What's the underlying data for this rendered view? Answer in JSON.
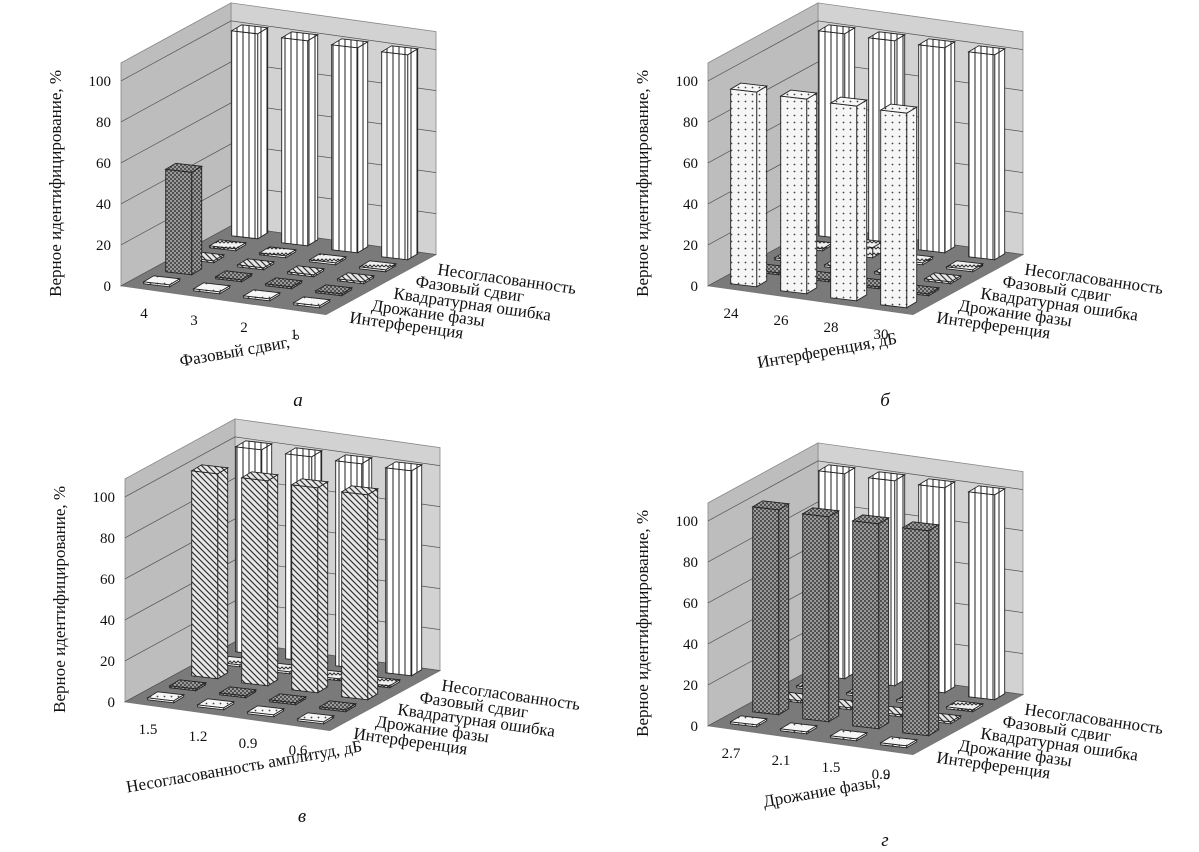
{
  "figure": {
    "depth_categories": [
      "Интерференция",
      "Дрожание фазы",
      "Квадратурная ошибка",
      "Фазовый сдвиг",
      "Несогласованность"
    ],
    "series_colors": {
      "Интерференция": "#f2f2f2",
      "Дрожание фазы": "#8a8a8a",
      "Квадратурная ошибка": "#cfcfcf",
      "Фазовый сдвиг": "#e6e6e6",
      "Несогласованность": "#ffffff"
    },
    "colors": {
      "floor": "#7a7a7a",
      "back_wall": "#d2d2d2",
      "side_wall": "#bdbdbd",
      "grid": "#555555"
    }
  },
  "chart_data": [
    {
      "type": "bar",
      "panel": "а",
      "title": "",
      "ylabel": "Верное идентифицирование, %",
      "xlabel": "Фазовый сдвиг, °",
      "categories": [
        "4",
        "3",
        "2",
        "1"
      ],
      "yticks": [
        "0",
        "20",
        "40",
        "60",
        "80",
        "100"
      ],
      "ylim": [
        0,
        100
      ],
      "grid": true,
      "series": [
        {
          "name": "Интерференция",
          "values": [
            0,
            0,
            0,
            0
          ]
        },
        {
          "name": "Дрожание фазы",
          "values": [
            50,
            0,
            0,
            0
          ]
        },
        {
          "name": "Квадратурная ошибка",
          "values": [
            0,
            0,
            0,
            0
          ]
        },
        {
          "name": "Фазовый сдвиг",
          "values": [
            0,
            0,
            0,
            0
          ]
        },
        {
          "name": "Несогласованность",
          "values": [
            100,
            100,
            100,
            100
          ]
        }
      ]
    },
    {
      "type": "bar",
      "panel": "б",
      "title": "",
      "ylabel": "Верное идентифицирование, %",
      "xlabel": "Интерференция, дБ",
      "categories": [
        "24",
        "26",
        "28",
        "30"
      ],
      "yticks": [
        "0",
        "20",
        "40",
        "60",
        "80",
        "100"
      ],
      "ylim": [
        0,
        100
      ],
      "grid": true,
      "series": [
        {
          "name": "Интерференция",
          "values": [
            95,
            95,
            95,
            95
          ]
        },
        {
          "name": "Дрожание фазы",
          "values": [
            0,
            0,
            0,
            0
          ]
        },
        {
          "name": "Квадратурная ошибка",
          "values": [
            0,
            0,
            0,
            0
          ]
        },
        {
          "name": "Фазовый сдвиг",
          "values": [
            0,
            5,
            0,
            0
          ]
        },
        {
          "name": "Несогласованность",
          "values": [
            100,
            100,
            100,
            100
          ]
        }
      ]
    },
    {
      "type": "bar",
      "panel": "в",
      "title": "",
      "ylabel": "Верное идентифицирование, %",
      "xlabel": "Несогласованность амплитуд, дБ",
      "categories": [
        "1.5",
        "1.2",
        "0.9",
        "0.6"
      ],
      "yticks": [
        "0",
        "20",
        "40",
        "60",
        "80",
        "100"
      ],
      "ylim": [
        0,
        100
      ],
      "grid": true,
      "series": [
        {
          "name": "Интерференция",
          "values": [
            0,
            0,
            0,
            0
          ]
        },
        {
          "name": "Дрожание фазы",
          "values": [
            0,
            0,
            0,
            0
          ]
        },
        {
          "name": "Квадратурная ошибка",
          "values": [
            100,
            100,
            100,
            100
          ]
        },
        {
          "name": "Фазовый сдвиг",
          "values": [
            0,
            0,
            0,
            0
          ]
        },
        {
          "name": "Несогласованность",
          "values": [
            100,
            100,
            100,
            100
          ]
        }
      ]
    },
    {
      "type": "bar",
      "panel": "г",
      "title": "",
      "ylabel": "Верное идентифицирование, %",
      "xlabel": "Дрожание фазы, °",
      "categories": [
        "2.7",
        "2.1",
        "1.5",
        "0.9"
      ],
      "yticks": [
        "0",
        "20",
        "40",
        "60",
        "80",
        "100"
      ],
      "ylim": [
        0,
        100
      ],
      "grid": true,
      "series": [
        {
          "name": "Интерференция",
          "values": [
            0,
            0,
            0,
            0
          ]
        },
        {
          "name": "Дрожание фазы",
          "values": [
            100,
            100,
            100,
            100
          ]
        },
        {
          "name": "Квадратурная ошибка",
          "values": [
            0,
            0,
            0,
            0
          ]
        },
        {
          "name": "Фазовый сдвиг",
          "values": [
            0,
            0,
            0,
            0
          ]
        },
        {
          "name": "Несогласованность",
          "values": [
            100,
            100,
            100,
            100
          ]
        }
      ]
    }
  ]
}
